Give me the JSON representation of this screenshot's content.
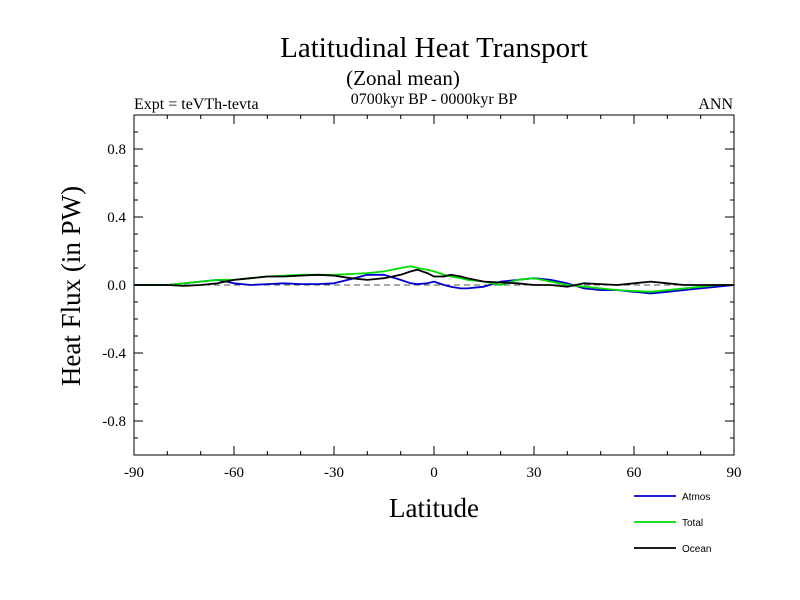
{
  "chart_data": {
    "type": "line",
    "title": "Latitudinal Heat Transport",
    "subtitle": "(Zonal mean)",
    "left_label": "Expt = teVTh-tevta",
    "center_label": "0700kyr BP - 0000kyr BP",
    "right_label": "ANN",
    "xlabel": "Latitude",
    "ylabel": "Heat Flux (in PW)",
    "xlim": [
      -90,
      90
    ],
    "ylim": [
      -1.0,
      1.0
    ],
    "x_ticks": [
      -90,
      -60,
      -30,
      0,
      30,
      60,
      90
    ],
    "y_ticks": [
      -0.8,
      -0.4,
      0.0,
      0.4,
      0.8
    ],
    "y_tick_labels": [
      "-0.8",
      "-0.4",
      "0.0",
      "0.4",
      "0.8"
    ],
    "legend_position": "bottom-right",
    "zero_line": "dashed",
    "series": [
      {
        "name": "Atmos",
        "color": "#0000cc",
        "x": [
          -90,
          -80,
          -75,
          -70,
          -65,
          -60,
          -55,
          -50,
          -45,
          -40,
          -35,
          -30,
          -25,
          -20,
          -15,
          -10,
          -7,
          -5,
          -2,
          0,
          3,
          5,
          8,
          10,
          15,
          20,
          25,
          30,
          35,
          40,
          45,
          50,
          55,
          60,
          65,
          70,
          75,
          80,
          85,
          90
        ],
        "values": [
          0.0,
          0.0,
          0.01,
          0.02,
          0.03,
          0.01,
          0.0,
          0.005,
          0.01,
          0.005,
          0.005,
          0.01,
          0.035,
          0.06,
          0.06,
          0.03,
          0.01,
          0.005,
          0.01,
          0.02,
          0.0,
          -0.01,
          -0.02,
          -0.02,
          -0.01,
          0.02,
          0.03,
          0.04,
          0.03,
          0.01,
          -0.02,
          -0.03,
          -0.03,
          -0.04,
          -0.05,
          -0.04,
          -0.03,
          -0.02,
          -0.01,
          0.0
        ]
      },
      {
        "name": "Total",
        "color": "#00dd00",
        "x": [
          -90,
          -80,
          -75,
          -70,
          -65,
          -60,
          -55,
          -50,
          -45,
          -40,
          -35,
          -30,
          -25,
          -20,
          -15,
          -10,
          -7,
          -5,
          -2,
          0,
          3,
          5,
          8,
          10,
          15,
          20,
          25,
          30,
          35,
          40,
          45,
          50,
          55,
          60,
          65,
          70,
          75,
          80,
          85,
          90
        ],
        "values": [
          0.0,
          0.0,
          0.01,
          0.02,
          0.03,
          0.03,
          0.04,
          0.05,
          0.055,
          0.06,
          0.06,
          0.06,
          0.065,
          0.07,
          0.08,
          0.1,
          0.11,
          0.1,
          0.09,
          0.08,
          0.06,
          0.05,
          0.04,
          0.03,
          0.02,
          0.0,
          0.03,
          0.04,
          0.02,
          0.0,
          -0.01,
          -0.02,
          -0.03,
          -0.035,
          -0.04,
          -0.03,
          -0.02,
          -0.01,
          0.0,
          0.0
        ]
      },
      {
        "name": "Ocean",
        "color": "#000000",
        "x": [
          -90,
          -80,
          -75,
          -70,
          -65,
          -60,
          -55,
          -50,
          -45,
          -40,
          -35,
          -30,
          -25,
          -20,
          -15,
          -10,
          -7,
          -5,
          -2,
          0,
          3,
          5,
          8,
          10,
          15,
          20,
          25,
          30,
          35,
          40,
          45,
          50,
          55,
          60,
          65,
          70,
          75,
          80,
          85,
          90
        ],
        "values": [
          0.0,
          0.0,
          -0.005,
          0.0,
          0.01,
          0.03,
          0.04,
          0.05,
          0.05,
          0.055,
          0.06,
          0.055,
          0.04,
          0.03,
          0.04,
          0.06,
          0.08,
          0.09,
          0.07,
          0.05,
          0.05,
          0.06,
          0.05,
          0.04,
          0.02,
          0.015,
          0.01,
          0.0,
          0.0,
          -0.01,
          0.01,
          0.005,
          0.0,
          0.01,
          0.02,
          0.01,
          0.0,
          0.0,
          0.0,
          0.0
        ]
      }
    ]
  }
}
